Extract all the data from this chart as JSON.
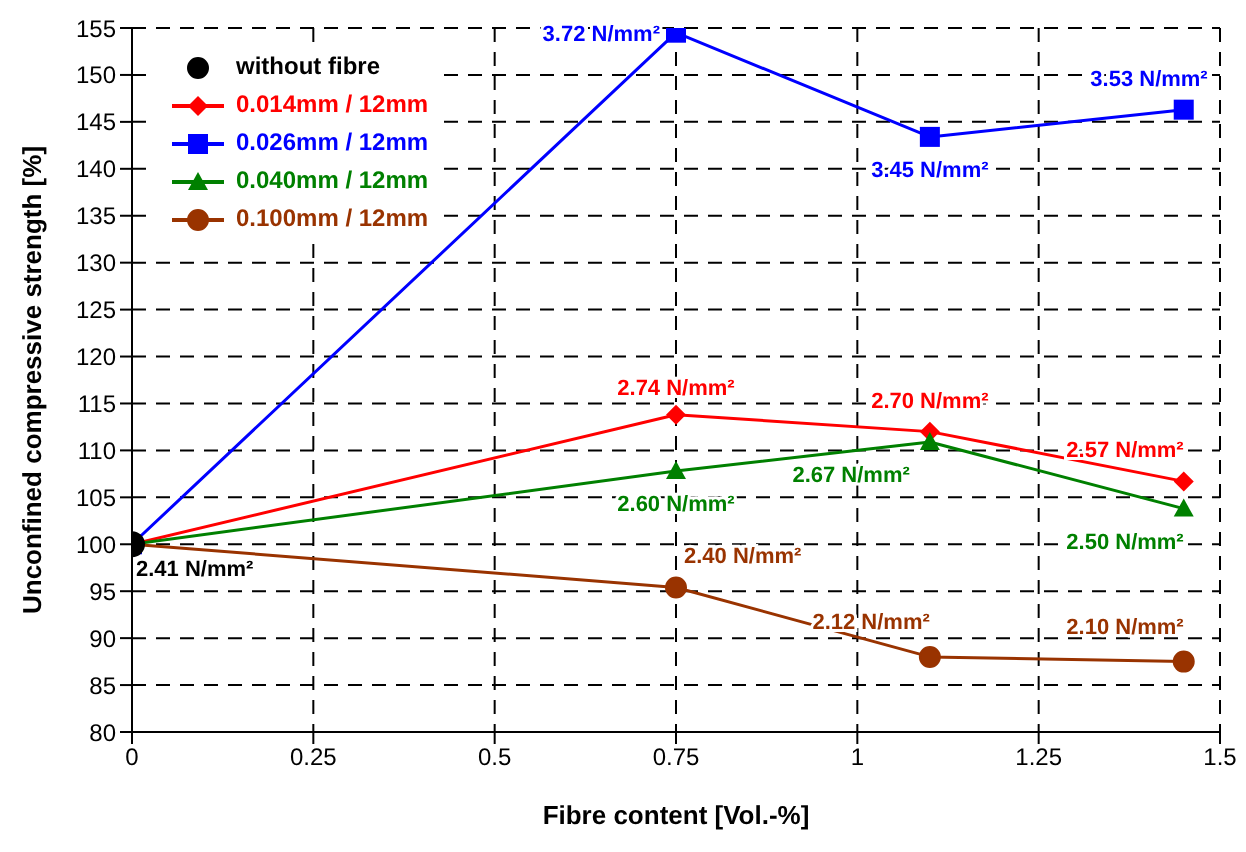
{
  "chart_data": {
    "type": "line",
    "xlabel": "Fibre content [Vol.-%]",
    "ylabel": "Unconfined compressive strength [%]",
    "xlim": [
      0,
      1.5
    ],
    "xticks": [
      0,
      0.25,
      0.5,
      0.75,
      1,
      1.25,
      1.5
    ],
    "ylim": [
      80,
      155
    ],
    "yticks": [
      80,
      85,
      90,
      95,
      100,
      105,
      110,
      115,
      120,
      125,
      130,
      135,
      140,
      145,
      150,
      155
    ],
    "grid": true,
    "legend": "top left",
    "line_style": "solid",
    "series": [
      {
        "name": "without fibre",
        "type": "scatter",
        "marker": "circle",
        "color": "#000000",
        "x": [
          0
        ],
        "values": [
          100
        ]
      },
      {
        "name": "0.014mm / 12mm",
        "marker": "diamond",
        "color": "#ff0000",
        "x": [
          0,
          0.75,
          1.1,
          1.45
        ],
        "values": [
          100,
          113.8,
          112,
          106.7
        ]
      },
      {
        "name": "0.026mm / 12mm",
        "marker": "square",
        "color": "#0000ff",
        "x": [
          0,
          0.75,
          1.1,
          1.45
        ],
        "values": [
          100,
          154.5,
          143.4,
          146.3
        ]
      },
      {
        "name": "0.040mm / 12mm",
        "marker": "triangle",
        "color": "#008000",
        "x": [
          0,
          0.75,
          1.1,
          1.45
        ],
        "values": [
          100,
          107.8,
          110.9,
          103.8
        ]
      },
      {
        "name": "0.100mm / 12mm",
        "marker": "circle",
        "color": "#993300",
        "x": [
          0,
          0.75,
          1.1,
          1.45
        ],
        "values": [
          100,
          95.4,
          88,
          87.5
        ]
      }
    ],
    "annotations": [
      {
        "text": "2.41 N/mm²",
        "x": 0,
        "y": 100
      },
      {
        "text": "3.72 N/mm²",
        "x": 0.75,
        "y": 154.5
      },
      {
        "text": "3.45 N/mm²",
        "x": 1.1,
        "y": 143.4
      },
      {
        "text": "3.53 N/mm²",
        "x": 1.45,
        "y": 146.3
      },
      {
        "text": "2.74 N/mm²",
        "x": 0.75,
        "y": 113.8
      },
      {
        "text": "2.70 N/mm²",
        "x": 1.1,
        "y": 112
      },
      {
        "text": "2.57 N/mm²",
        "x": 1.45,
        "y": 106.7
      },
      {
        "text": "2.60 N/mm²",
        "x": 0.75,
        "y": 107.8
      },
      {
        "text": "2.67 N/mm²",
        "x": 1.1,
        "y": 110.9
      },
      {
        "text": "2.50 N/mm²",
        "x": 1.45,
        "y": 103.8
      },
      {
        "text": "2.40 N/mm²",
        "x": 0.75,
        "y": 95.4
      },
      {
        "text": "2.12 N/mm²",
        "x": 1.1,
        "y": 88
      },
      {
        "text": "2.10 N/mm²",
        "x": 1.45,
        "y": 87.5
      }
    ]
  }
}
